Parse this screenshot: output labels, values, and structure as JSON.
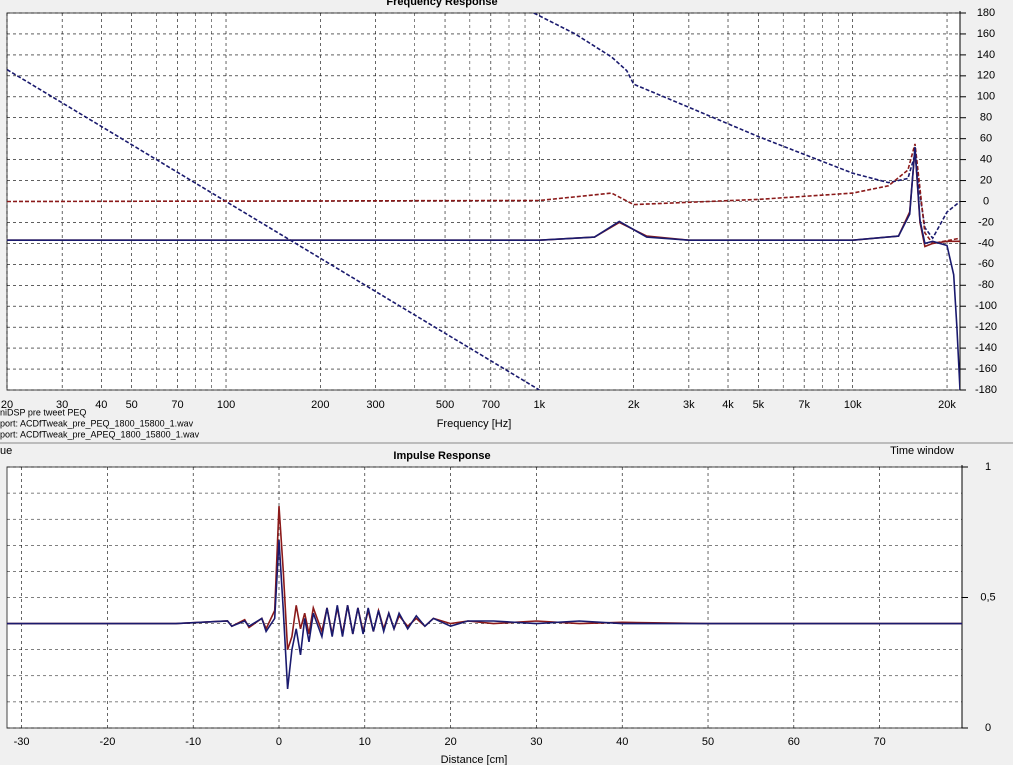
{
  "chart_data": [
    {
      "type": "line",
      "title": "Frequency Response",
      "x_label": "Frequency [Hz]",
      "xscale": "log",
      "grid": true,
      "notes": [
        "niDSP pre tweet PEQ",
        "port: ACDfTweak_pre_PEQ_1800_15800_1.wav",
        "port: ACDfTweak_pre_APEQ_1800_15800_1.wav"
      ],
      "xlim": [
        20,
        22000
      ],
      "ylim": [
        -180,
        180
      ],
      "xticks": [
        20,
        30,
        40,
        50,
        70,
        100,
        200,
        300,
        500,
        700,
        {
          "value": 1000,
          "label": "1k"
        },
        {
          "value": 2000,
          "label": "2k"
        },
        {
          "value": 3000,
          "label": "3k"
        },
        {
          "value": 4000,
          "label": "4k"
        },
        {
          "value": 5000,
          "label": "5k"
        },
        {
          "value": 7000,
          "label": "7k"
        },
        {
          "value": 10000,
          "label": "10k"
        },
        {
          "value": 20000,
          "label": "20k"
        }
      ],
      "xminor": [
        60,
        80,
        90,
        400,
        600,
        800,
        900,
        6000,
        8000,
        9000
      ],
      "yticks": [
        -180,
        -160,
        -140,
        -120,
        -100,
        -80,
        -60,
        -40,
        -20,
        0,
        20,
        40,
        60,
        80,
        100,
        120,
        140,
        160,
        180
      ],
      "series": [
        {
          "color": "#1a1a6e",
          "dash": true,
          "x": [
            20,
            100,
            1000
          ],
          "values": [
            126,
            0,
            -180
          ]
        },
        {
          "color": "#1a1a6e",
          "dash": true,
          "x": [
            960,
            1300,
            1700,
            1900,
            2000,
            3000,
            5000,
            7000,
            10000,
            13000,
            15000,
            15800,
            16500,
            17000,
            18000,
            20000,
            22000
          ],
          "values": [
            180,
            160,
            138,
            125,
            112,
            90,
            62,
            45,
            27,
            18,
            22,
            45,
            0,
            -25,
            -35,
            -10,
            0
          ]
        },
        {
          "color": "#8b1a1a",
          "dash": true,
          "x": [
            20,
            1000,
            1700,
            2000,
            5000,
            10000,
            13000,
            15000,
            15800,
            17000,
            18000,
            22000
          ],
          "values": [
            0,
            1,
            8,
            -3,
            2,
            8,
            15,
            30,
            55,
            -30,
            -40,
            -35
          ]
        },
        {
          "color": "#8b1a1a",
          "dash": false,
          "x": [
            20,
            1000,
            1500,
            1800,
            2200,
            3000,
            10000,
            14000,
            15200,
            15800,
            16400,
            17000,
            18000,
            20000,
            22000
          ],
          "values": [
            -37,
            -37,
            -34,
            -20,
            -33,
            -37,
            -37,
            -33,
            -10,
            50,
            -20,
            -43,
            -40,
            -38,
            -38
          ]
        },
        {
          "color": "#1a1a6e",
          "dash": false,
          "x": [
            20,
            1000,
            1500,
            1800,
            2200,
            3000,
            10000,
            14000,
            15200,
            15800,
            16400,
            17000,
            18000,
            20000,
            21000,
            21500,
            22000
          ],
          "values": [
            -37,
            -37,
            -34,
            -19,
            -34,
            -37,
            -37,
            -33,
            -12,
            52,
            -18,
            -40,
            -38,
            -42,
            -70,
            -120,
            -180
          ]
        }
      ]
    },
    {
      "type": "line",
      "title": "Impulse Response",
      "x_label": "Distance [cm]",
      "xscale": "linear",
      "grid": true,
      "side_texts": [
        "ue",
        "Time window"
      ],
      "xlim": [
        -31.7,
        79.6
      ],
      "ylim": [
        0,
        1
      ],
      "xticks": [
        -30,
        -20,
        -10,
        0,
        10,
        20,
        30,
        40,
        50,
        60,
        70
      ],
      "yticks": [
        0,
        {
          "value": 0.5,
          "label": "0,5"
        },
        1
      ],
      "yminor": [
        0.1,
        0.2,
        0.3,
        0.4,
        0.6,
        0.7,
        0.8,
        0.9
      ],
      "x": [
        -31.7,
        -12,
        -6,
        -5.5,
        -4,
        -3.5,
        -2,
        -1.5,
        -0.5,
        0,
        0.5,
        1,
        1.5,
        2,
        2.5,
        3,
        3.5,
        4,
        5,
        5.6,
        6.2,
        6.8,
        7.4,
        8,
        8.6,
        9.2,
        9.8,
        10.4,
        11,
        11.6,
        12.2,
        12.8,
        13.4,
        14,
        15,
        16,
        17,
        18,
        20,
        22,
        25,
        30,
        35,
        40,
        50,
        60,
        70,
        79.6
      ],
      "series": [
        {
          "color": "#8b1a1a",
          "values": [
            0.4,
            0.4,
            0.41,
            0.39,
            0.415,
            0.385,
            0.42,
            0.38,
            0.45,
            0.85,
            0.6,
            0.3,
            0.35,
            0.47,
            0.38,
            0.44,
            0.36,
            0.46,
            0.37,
            0.46,
            0.36,
            0.46,
            0.36,
            0.47,
            0.36,
            0.46,
            0.37,
            0.45,
            0.37,
            0.45,
            0.38,
            0.44,
            0.38,
            0.43,
            0.39,
            0.42,
            0.39,
            0.42,
            0.4,
            0.41,
            0.4,
            0.41,
            0.4,
            0.405,
            0.4,
            0.4,
            0.4,
            0.4
          ]
        },
        {
          "color": "#1a1a6e",
          "values": [
            0.4,
            0.4,
            0.41,
            0.39,
            0.41,
            0.39,
            0.42,
            0.37,
            0.42,
            0.72,
            0.45,
            0.15,
            0.3,
            0.38,
            0.28,
            0.42,
            0.33,
            0.44,
            0.35,
            0.46,
            0.35,
            0.47,
            0.35,
            0.47,
            0.36,
            0.46,
            0.36,
            0.46,
            0.37,
            0.45,
            0.37,
            0.44,
            0.38,
            0.44,
            0.38,
            0.43,
            0.39,
            0.42,
            0.39,
            0.41,
            0.41,
            0.4,
            0.41,
            0.4,
            0.4,
            0.4,
            0.4,
            0.4
          ]
        }
      ]
    }
  ]
}
